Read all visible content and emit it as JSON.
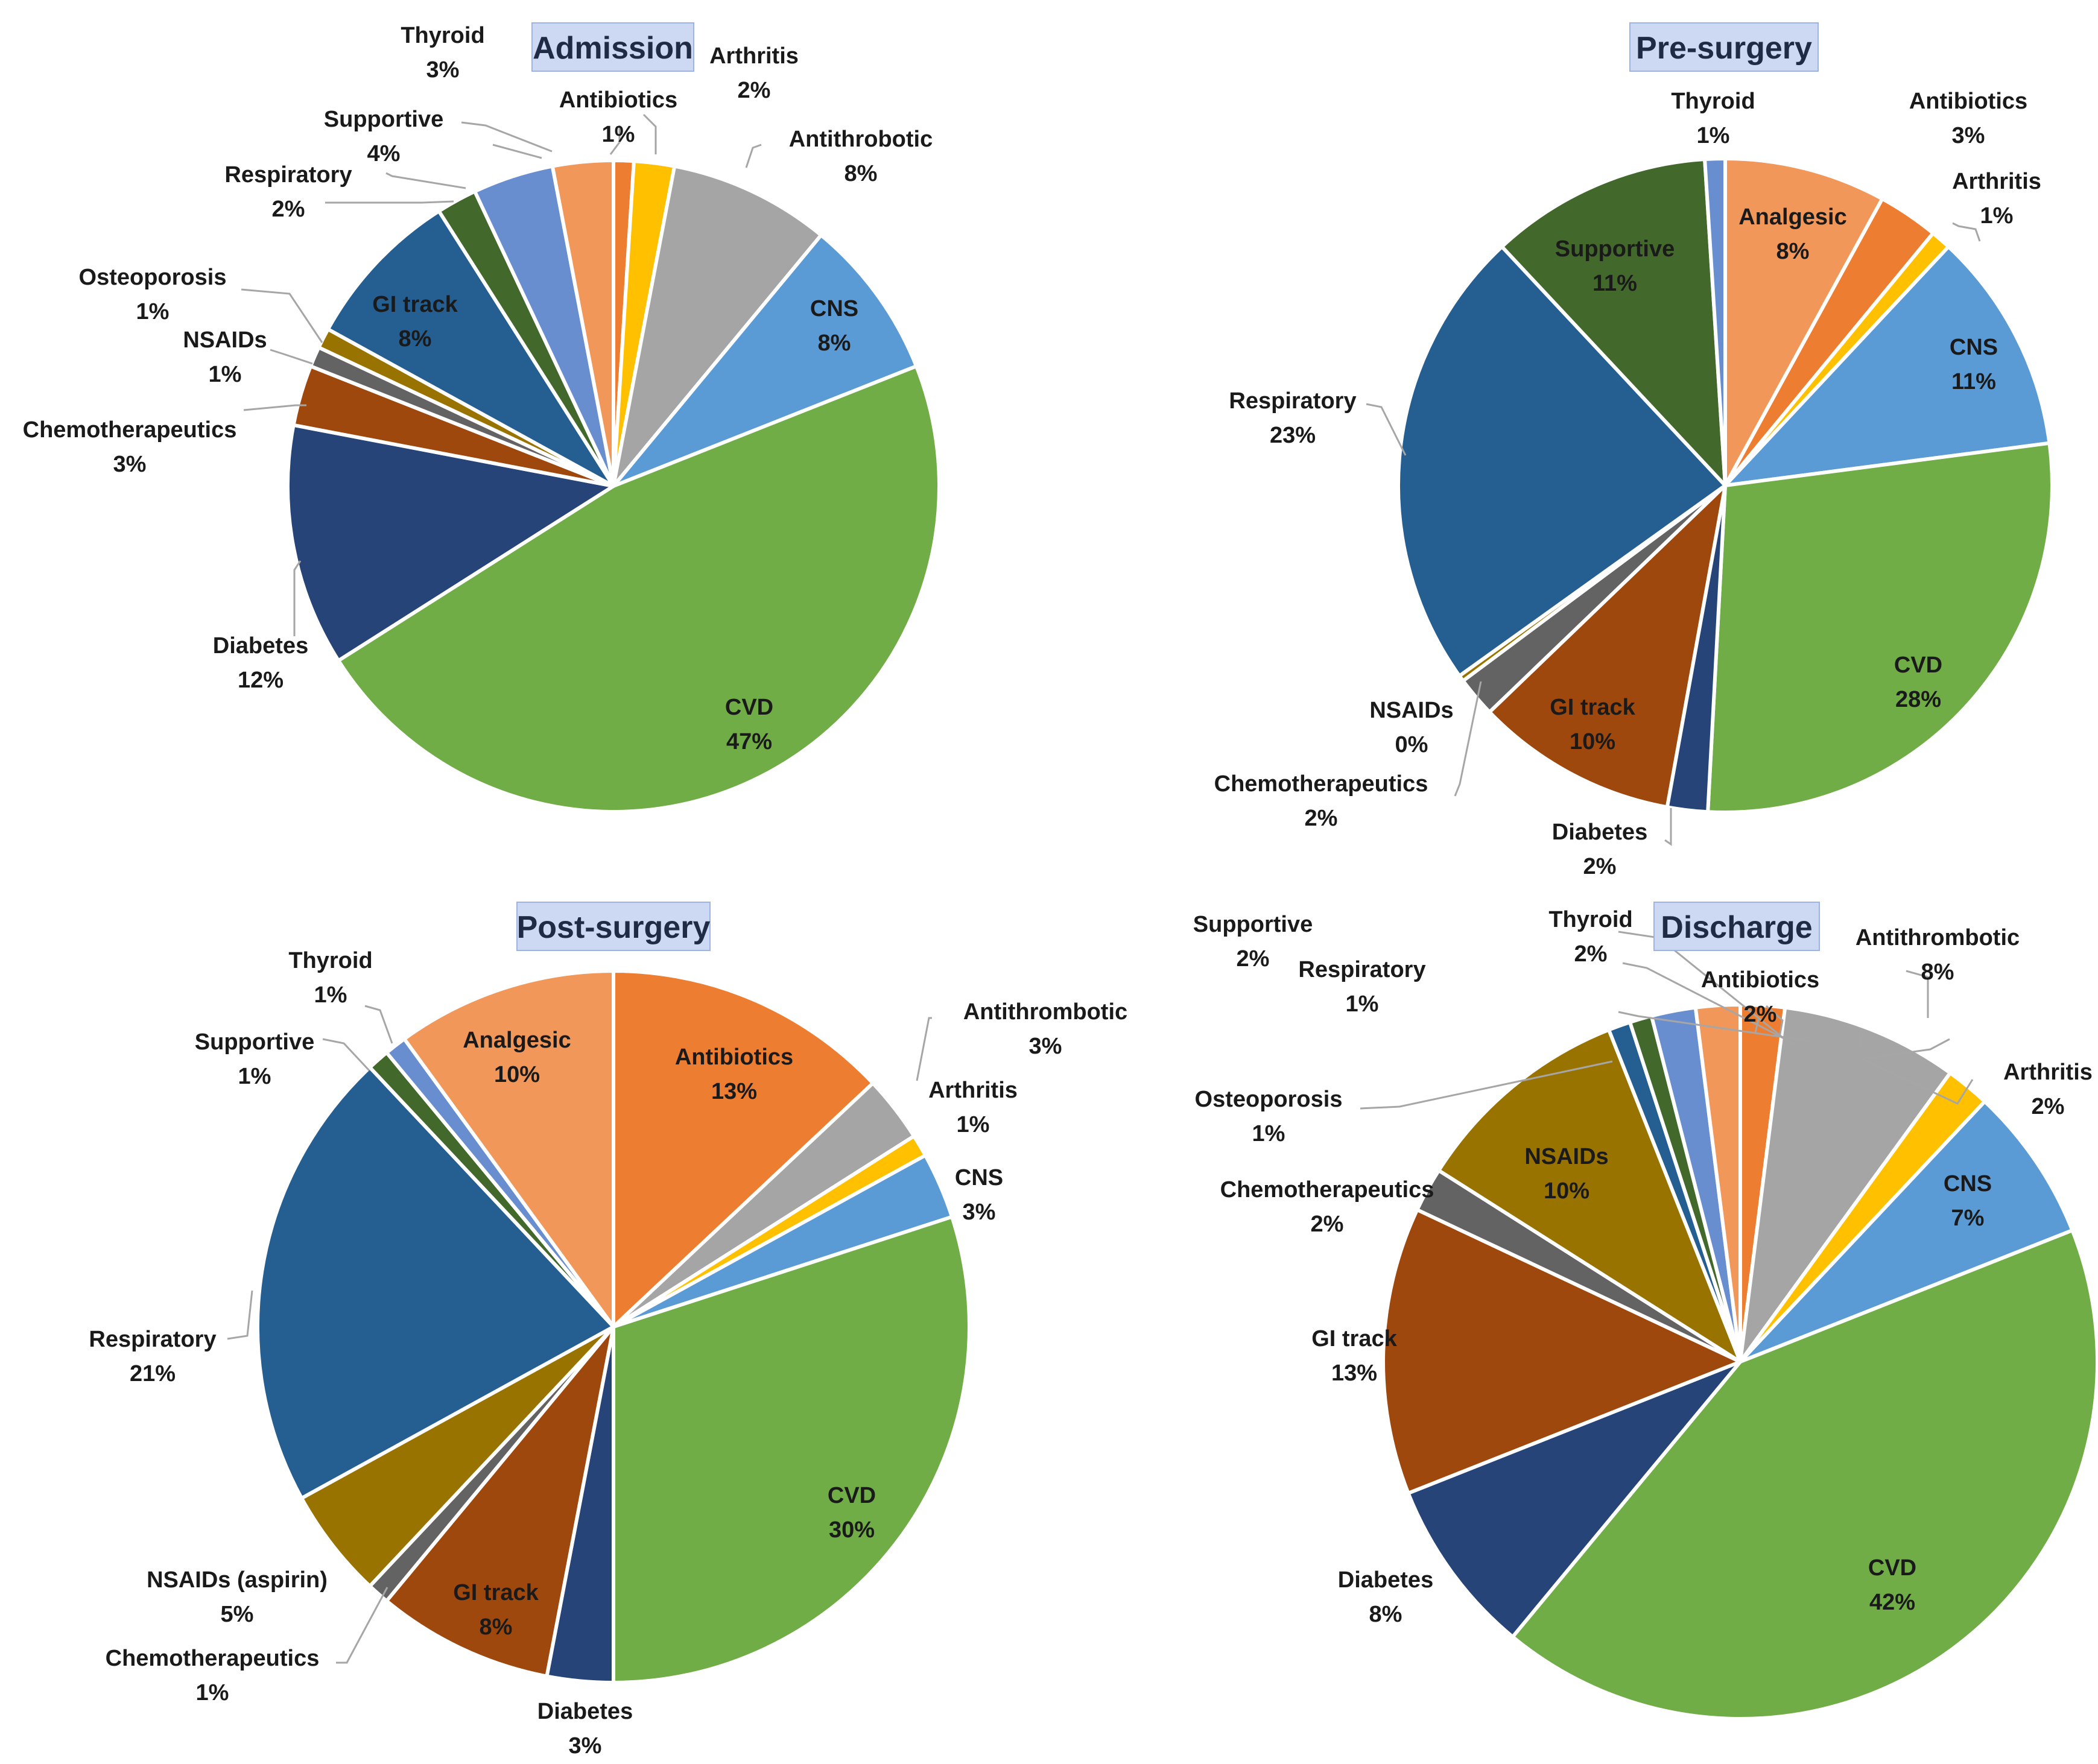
{
  "chart_data": [
    {
      "type": "pie",
      "title": "Admission",
      "slices": [
        {
          "label": "Antibiotics",
          "value": 1,
          "pct": "1%",
          "color": "#ed7d31"
        },
        {
          "label": "Arthritis",
          "value": 2,
          "pct": "2%",
          "color": "#ffc000"
        },
        {
          "label": "Antithrobotic",
          "value": 8,
          "pct": "8%",
          "color": "#a5a5a5"
        },
        {
          "label": "CNS",
          "value": 8,
          "pct": "8%",
          "color": "#5b9bd5"
        },
        {
          "label": "CVD",
          "value": 47,
          "pct": "47%",
          "color": "#70ad47"
        },
        {
          "label": "Diabetes",
          "value": 12,
          "pct": "12%",
          "color": "#264478"
        },
        {
          "label": "Chemotherapeutics",
          "value": 3,
          "pct": "3%",
          "color": "#9e480e"
        },
        {
          "label": "NSAIDs",
          "value": 1,
          "pct": "1%",
          "color": "#636363"
        },
        {
          "label": "Osteoporosis",
          "value": 1,
          "pct": "1%",
          "color": "#997300"
        },
        {
          "label": "GI track",
          "value": 8,
          "pct": "8%",
          "color": "#255e91"
        },
        {
          "label": "Respiratory",
          "value": 2,
          "pct": "2%",
          "color": "#43682b"
        },
        {
          "label": "Supportive",
          "value": 4,
          "pct": "4%",
          "color": "#698ed0"
        },
        {
          "label": "Thyroid",
          "value": 3,
          "pct": "3%",
          "color": "#f1975a"
        }
      ]
    },
    {
      "type": "pie",
      "title": "Pre-surgery",
      "slices": [
        {
          "label": "Analgesic",
          "value": 8,
          "pct": "8%",
          "color": "#f1975a"
        },
        {
          "label": "Antibiotics",
          "value": 3,
          "pct": "3%",
          "color": "#ed7d31"
        },
        {
          "label": "Arthritis",
          "value": 1,
          "pct": "1%",
          "color": "#ffc000"
        },
        {
          "label": "CNS",
          "value": 11,
          "pct": "11%",
          "color": "#5b9bd5"
        },
        {
          "label": "CVD",
          "value": 28,
          "pct": "28%",
          "color": "#70ad47"
        },
        {
          "label": "Diabetes",
          "value": 2,
          "pct": "2%",
          "color": "#264478"
        },
        {
          "label": "GI track",
          "value": 10,
          "pct": "10%",
          "color": "#9e480e"
        },
        {
          "label": "Chemotherapeutics",
          "value": 2,
          "pct": "2%",
          "color": "#636363"
        },
        {
          "label": "NSAIDs",
          "value": 0.3,
          "pct": "0%",
          "color": "#997300"
        },
        {
          "label": "Respiratory",
          "value": 23,
          "pct": "23%",
          "color": "#255e91"
        },
        {
          "label": "Supportive",
          "value": 11,
          "pct": "11%",
          "color": "#43682b"
        },
        {
          "label": "Thyroid",
          "value": 1,
          "pct": "1%",
          "color": "#698ed0"
        }
      ]
    },
    {
      "type": "pie",
      "title": "Post-surgery",
      "slices": [
        {
          "label": "Antibiotics",
          "value": 13,
          "pct": "13%",
          "color": "#ed7d31"
        },
        {
          "label": "Antithrombotic",
          "value": 3,
          "pct": "3%",
          "color": "#a5a5a5"
        },
        {
          "label": "Arthritis",
          "value": 1,
          "pct": "1%",
          "color": "#ffc000"
        },
        {
          "label": "CNS",
          "value": 3,
          "pct": "3%",
          "color": "#5b9bd5"
        },
        {
          "label": "CVD",
          "value": 30,
          "pct": "30%",
          "color": "#70ad47"
        },
        {
          "label": "Diabetes",
          "value": 3,
          "pct": "3%",
          "color": "#264478"
        },
        {
          "label": "GI track",
          "value": 8,
          "pct": "8%",
          "color": "#9e480e"
        },
        {
          "label": "Chemotherapeutics",
          "value": 1,
          "pct": "1%",
          "color": "#636363"
        },
        {
          "label": "NSAIDs (aspirin)",
          "value": 5,
          "pct": "5%",
          "color": "#997300"
        },
        {
          "label": "Respiratory",
          "value": 21,
          "pct": "21%",
          "color": "#255e91"
        },
        {
          "label": "Supportive",
          "value": 1,
          "pct": "1%",
          "color": "#43682b"
        },
        {
          "label": "Thyroid",
          "value": 1,
          "pct": "1%",
          "color": "#698ed0"
        },
        {
          "label": "Analgesic",
          "value": 10,
          "pct": "10%",
          "color": "#f1975a"
        }
      ]
    },
    {
      "type": "pie",
      "title": "Discharge",
      "slices": [
        {
          "label": "Antibiotics",
          "value": 2,
          "pct": "2%",
          "color": "#ed7d31"
        },
        {
          "label": "Antithrombotic",
          "value": 8,
          "pct": "8%",
          "color": "#a5a5a5"
        },
        {
          "label": "Arthritis",
          "value": 2,
          "pct": "2%",
          "color": "#ffc000"
        },
        {
          "label": "CNS",
          "value": 7,
          "pct": "7%",
          "color": "#5b9bd5"
        },
        {
          "label": "CVD",
          "value": 42,
          "pct": "42%",
          "color": "#70ad47"
        },
        {
          "label": "Diabetes",
          "value": 8,
          "pct": "8%",
          "color": "#264478"
        },
        {
          "label": "GI track",
          "value": 13,
          "pct": "13%",
          "color": "#9e480e"
        },
        {
          "label": "Chemotherapeutics",
          "value": 2,
          "pct": "2%",
          "color": "#636363"
        },
        {
          "label": "NSAIDs",
          "value": 10,
          "pct": "10%",
          "color": "#997300"
        },
        {
          "label": "Osteoporosis",
          "value": 1,
          "pct": "1%",
          "color": "#255e91"
        },
        {
          "label": "Respiratory",
          "value": 1,
          "pct": "1%",
          "color": "#43682b"
        },
        {
          "label": "Supportive",
          "value": 2,
          "pct": "2%",
          "color": "#698ed0"
        },
        {
          "label": "Thyroid",
          "value": 2,
          "pct": "2%",
          "color": "#f1975a"
        }
      ]
    }
  ]
}
